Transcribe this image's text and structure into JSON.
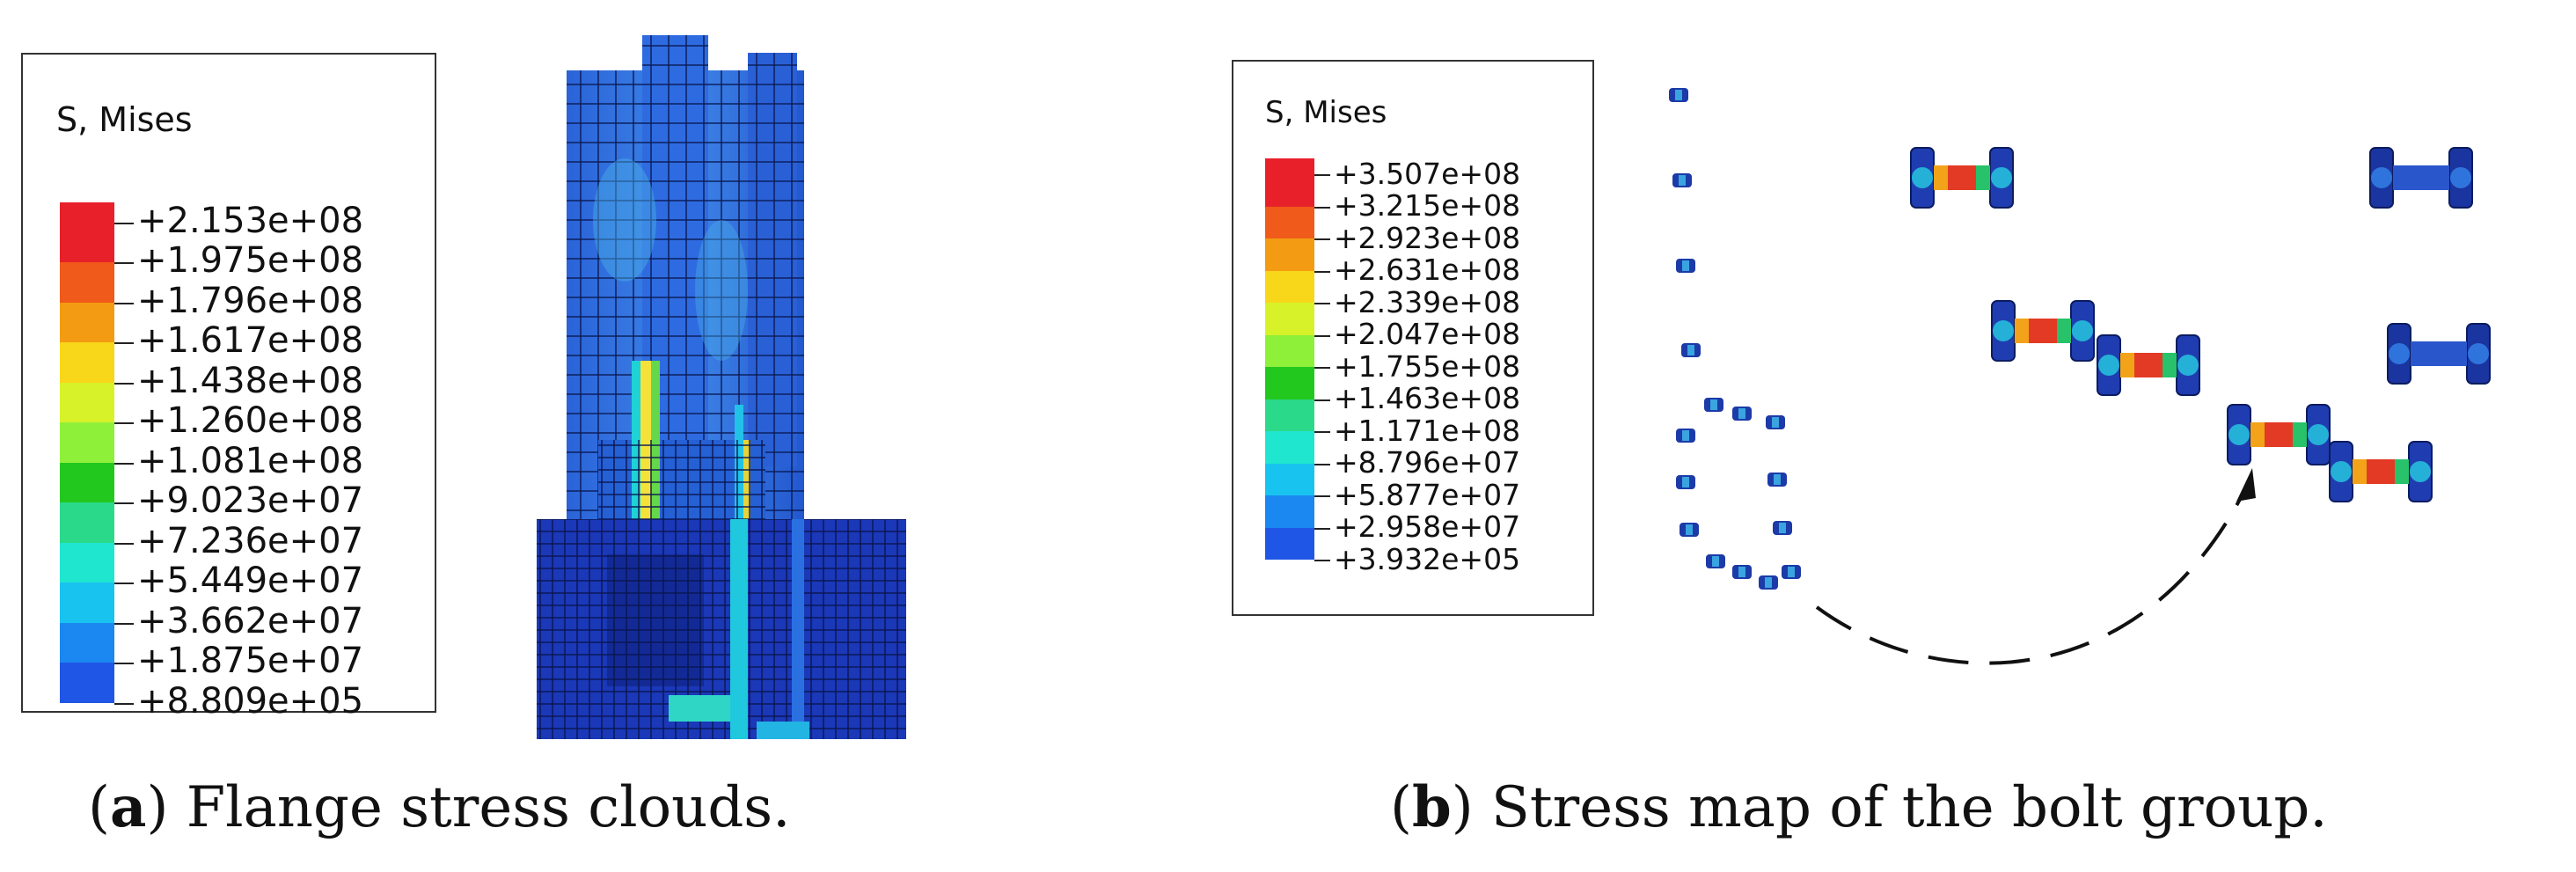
{
  "panel_a": {
    "legend": {
      "title": "S, Mises",
      "values": [
        "+2.153e+08",
        "+1.975e+08",
        "+1.796e+08",
        "+1.617e+08",
        "+1.438e+08",
        "+1.260e+08",
        "+1.081e+08",
        "+9.023e+07",
        "+7.236e+07",
        "+5.449e+07",
        "+3.662e+07",
        "+1.875e+07",
        "+8.809e+05"
      ],
      "colors": [
        "#e8202a",
        "#f05a1a",
        "#f39b12",
        "#f8d61a",
        "#d7f229",
        "#8ff03a",
        "#23c81f",
        "#2bd98a",
        "#1fe6cf",
        "#19c3f0",
        "#1b87f0",
        "#1f56e6",
        "#1024e0"
      ]
    },
    "caption_label": "a",
    "caption_text": " Flange stress clouds."
  },
  "panel_b": {
    "legend": {
      "title": "S, Mises",
      "values": [
        "+3.507e+08",
        "+3.215e+08",
        "+2.923e+08",
        "+2.631e+08",
        "+2.339e+08",
        "+2.047e+08",
        "+1.755e+08",
        "+1.463e+08",
        "+1.171e+08",
        "+8.796e+07",
        "+5.877e+07",
        "+2.958e+07",
        "+3.932e+05"
      ],
      "colors": [
        "#e8202a",
        "#f05a1a",
        "#f39b12",
        "#f8d61a",
        "#d7f229",
        "#8ff03a",
        "#23c81f",
        "#2bd98a",
        "#1fe6cf",
        "#19c3f0",
        "#1b87f0",
        "#1f56e6",
        "#1024e0"
      ]
    },
    "caption_label": "b",
    "caption_text": " Stress map of the bolt group."
  }
}
